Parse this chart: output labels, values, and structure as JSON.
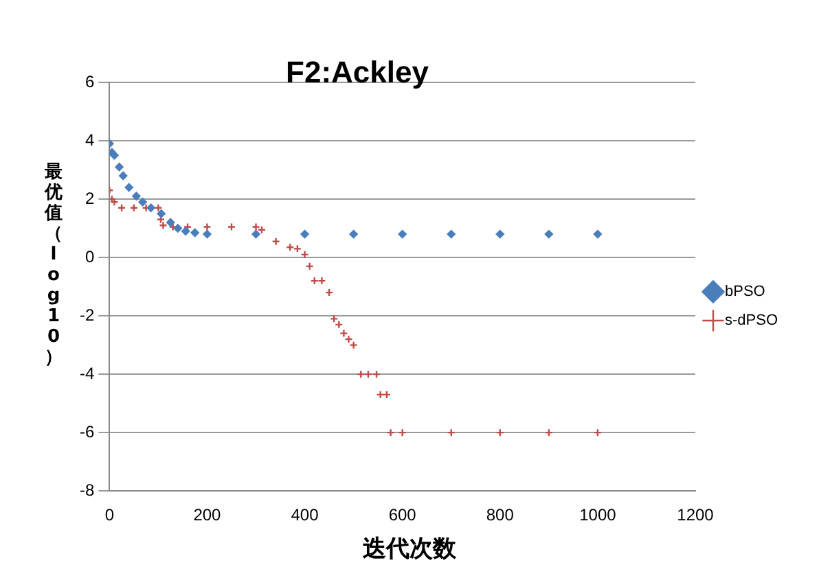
{
  "chart_data": {
    "type": "scatter",
    "title": "F2:Ackley",
    "xlabel": "迭代次数",
    "ylabel": "最优值（log10）",
    "xlim": [
      0,
      1200
    ],
    "xticks": [
      0,
      200,
      400,
      600,
      800,
      1000,
      1200
    ],
    "ylim": [
      -8,
      6
    ],
    "yticks": [
      -8,
      -6,
      -4,
      -2,
      0,
      2,
      4,
      6
    ],
    "grid": "y",
    "legend": "right",
    "series": [
      {
        "name": "bPSO",
        "color": "#4a7ebb",
        "marker": "diamond",
        "x": [
          0,
          5,
          10,
          20,
          28,
          40,
          55,
          68,
          85,
          106,
          125,
          140,
          156,
          175,
          200,
          300,
          400,
          500,
          600,
          700,
          800,
          900,
          1000
        ],
        "values": [
          3.9,
          3.6,
          3.5,
          3.1,
          2.8,
          2.4,
          2.1,
          1.9,
          1.7,
          1.5,
          1.2,
          1.0,
          0.9,
          0.85,
          0.8,
          0.8,
          0.8,
          0.8,
          0.8,
          0.8,
          0.8,
          0.8,
          0.8
        ]
      },
      {
        "name": "s-dPSO",
        "color": "#be4b48",
        "marker": "cross",
        "x": [
          0,
          5,
          10,
          25,
          50,
          75,
          100,
          105,
          110,
          130,
          160,
          200,
          250,
          300,
          312,
          341,
          370,
          385,
          400,
          410,
          420,
          435,
          450,
          460,
          470,
          480,
          490,
          500,
          515,
          530,
          547,
          555,
          568,
          576,
          600,
          700,
          800,
          900,
          1000
        ],
        "values": [
          2.3,
          2.0,
          1.9,
          1.7,
          1.7,
          1.7,
          1.7,
          1.3,
          1.1,
          1.05,
          1.05,
          1.05,
          1.05,
          1.05,
          0.95,
          0.55,
          0.35,
          0.3,
          0.1,
          -0.3,
          -0.8,
          -0.8,
          -1.2,
          -2.1,
          -2.3,
          -2.6,
          -2.8,
          -3.0,
          -4,
          -4,
          -4,
          -4.7,
          -4.7,
          -6,
          -6,
          -6,
          -6,
          -6,
          -6
        ]
      }
    ]
  }
}
